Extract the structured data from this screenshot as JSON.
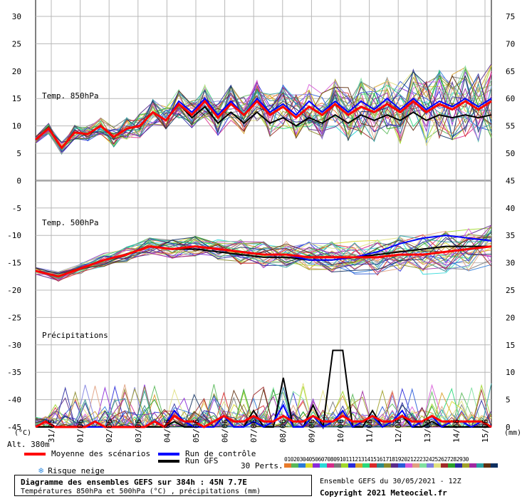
{
  "chart_data": {
    "type": "line",
    "title": "Diagramme des ensembles GEFS sur 384h : 45N 7.7E",
    "subtitle": "Températures 850hPa et 500hPa (°C) , précipitations (mm)",
    "run_info": "Ensemble GEFS du 30/05/2021 - 12Z",
    "copyright": "Copyright 2021 Meteociel.fr",
    "altitude": "Alt. 380m",
    "left_unit": "(°C)",
    "right_unit": "(mm)",
    "left_ticks": [
      "30",
      "25",
      "20",
      "15",
      "10",
      "5",
      "0",
      "-5",
      "-10",
      "-15",
      "-20",
      "-25",
      "-30",
      "-35",
      "-40",
      "-45"
    ],
    "right_ticks": [
      "75",
      "70",
      "65",
      "60",
      "55",
      "50",
      "45",
      "40",
      "35",
      "30",
      "25",
      "20",
      "15",
      "10",
      "5",
      "0"
    ],
    "x_ticks": [
      "31/05",
      "01/06",
      "02/06",
      "03/06",
      "04/06",
      "05/06",
      "06/06",
      "07/06",
      "08/06",
      "09/06",
      "10/06",
      "11/06",
      "12/06",
      "13/06",
      "14/06",
      "15/06"
    ],
    "panel_labels": {
      "t850": "Temp. 850hPa",
      "t500": "Temp. 500hPa",
      "precip": "Précipitations"
    },
    "left_range": [
      -45,
      30
    ],
    "right_range": [
      0,
      75
    ],
    "legend": {
      "moyenne": "Moyenne des scénarios",
      "controle": "Run de contrôle",
      "gfs": "Run GFS",
      "neige": "Risque neige",
      "perts": "30 Perts."
    },
    "series_colors": {
      "moyenne": "#ff0000",
      "controle": "#0000ff",
      "gfs": "#000000"
    },
    "pert_numbers": [
      "01",
      "02",
      "03",
      "04",
      "05",
      "06",
      "07",
      "08",
      "09",
      "10",
      "11",
      "12",
      "13",
      "14",
      "15",
      "16",
      "17",
      "18",
      "19",
      "20",
      "21",
      "22",
      "23",
      "24",
      "25",
      "26",
      "27",
      "28",
      "29",
      "30"
    ],
    "pert_colors": [
      "#e87a2a",
      "#58b858",
      "#2a7ad8",
      "#d8d82a",
      "#8a2ad8",
      "#2ad8d8",
      "#d82a8a",
      "#7a7a7a",
      "#a0d82a",
      "#2a2ad8",
      "#d8a02a",
      "#2ad87a",
      "#d82a2a",
      "#2a8a8a",
      "#8a8a2a",
      "#5a2a8a",
      "#2a5ad8",
      "#d85ad8",
      "#e0a080",
      "#80e0a0",
      "#8080e0",
      "#e0e080",
      "#a02a2a",
      "#2aa02a",
      "#2a2aa0",
      "#a0a02a",
      "#a02aa0",
      "#2aa0a0",
      "#603010",
      "#103060"
    ],
    "t850_mean": [
      7.5,
      9.5,
      6.0,
      8.8,
      8.5,
      10.0,
      8.0,
      9.5,
      10.0,
      12.5,
      11.0,
      14.0,
      12.0,
      14.5,
      11.5,
      14.0,
      12.0,
      14.5,
      12.0,
      13.5,
      11.5,
      13.5,
      12.0,
      14.0,
      12.0,
      13.5,
      12.5,
      14.0,
      12.5,
      14.5,
      12.5,
      14.0,
      13.0,
      14.5,
      13.0,
      14.5
    ],
    "t850_control": [
      7.5,
      9.5,
      6.0,
      8.8,
      8.5,
      10.0,
      8.0,
      9.5,
      10.0,
      12.5,
      11.0,
      14.5,
      12.5,
      15.0,
      12.0,
      14.5,
      12.0,
      15.0,
      12.5,
      14.0,
      12.0,
      14.5,
      12.5,
      14.5,
      12.5,
      14.5,
      13.0,
      15.0,
      13.0,
      15.0,
      13.0,
      14.5,
      13.5,
      15.0,
      13.5,
      15.0
    ],
    "t850_gfs": [
      7.5,
      9.5,
      6.0,
      8.8,
      8.5,
      10.0,
      8.0,
      9.5,
      10.0,
      12.5,
      11.0,
      14.0,
      11.5,
      13.5,
      10.5,
      12.5,
      10.5,
      12.5,
      10.5,
      11.5,
      10.0,
      11.5,
      10.5,
      12.0,
      10.5,
      12.0,
      11.0,
      12.0,
      11.0,
      12.5,
      11.0,
      12.0,
      11.5,
      12.0,
      11.5,
      12.0
    ],
    "t500_mean": [
      -16.5,
      -17.5,
      -16.0,
      -14.5,
      -13.5,
      -12.0,
      -12.5,
      -12.0,
      -12.5,
      -13.0,
      -13.5,
      -13.5,
      -14.0,
      -14.0,
      -14.0,
      -14.0,
      -13.5,
      -13.5,
      -13.0,
      -12.5,
      -12.0
    ],
    "t500_control": [
      -16.5,
      -17.5,
      -16.0,
      -14.5,
      -13.5,
      -12.0,
      -12.5,
      -12.0,
      -12.5,
      -13.0,
      -13.5,
      -13.5,
      -14.5,
      -14.5,
      -14.0,
      -13.0,
      -11.5,
      -10.5,
      -10.0,
      -10.5,
      -11.0
    ],
    "t500_gfs": [
      -16.5,
      -17.5,
      -16.0,
      -14.5,
      -13.5,
      -12.0,
      -12.5,
      -12.5,
      -13.0,
      -13.5,
      -14.0,
      -14.0,
      -14.5,
      -14.5,
      -14.0,
      -13.5,
      -13.0,
      -12.5,
      -12.0,
      -12.0,
      -12.0
    ],
    "precip_mean": [
      0,
      1,
      0,
      0,
      0,
      0,
      1,
      0,
      0,
      0,
      0,
      0,
      1,
      0,
      2,
      1,
      1,
      0,
      1,
      2,
      1,
      1,
      2,
      1,
      1,
      2,
      1,
      1,
      2,
      1,
      1,
      2,
      1,
      1,
      2,
      1,
      1,
      2,
      1,
      1,
      2,
      1,
      1,
      1,
      1,
      1,
      0
    ],
    "precip_control": [
      0,
      1,
      0,
      0,
      0,
      0,
      0,
      0,
      0,
      0,
      0,
      0,
      1,
      0,
      3,
      1,
      0,
      0,
      0,
      2,
      0,
      0,
      1,
      0,
      1,
      4,
      0,
      0,
      2,
      0,
      1,
      3,
      0,
      1,
      2,
      0,
      1,
      3,
      0,
      1,
      2,
      0,
      1,
      1,
      0,
      1,
      0
    ],
    "precip_gfs": [
      0,
      0,
      0,
      0,
      0,
      0,
      0,
      0,
      0,
      0,
      0,
      0,
      0,
      0,
      1,
      0,
      0,
      0,
      0,
      2,
      0,
      0,
      3,
      0,
      0,
      9,
      0,
      0,
      4,
      0,
      14,
      14,
      0,
      0,
      3,
      0,
      1,
      2,
      0,
      0,
      1,
      0,
      0,
      0,
      0,
      0,
      0
    ]
  }
}
